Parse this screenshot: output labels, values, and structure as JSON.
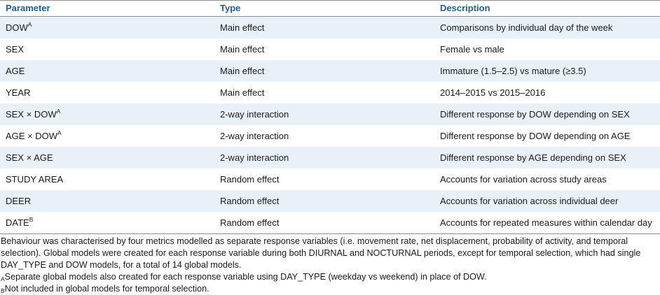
{
  "table": {
    "headers": [
      "Parameter",
      "Type",
      "Description"
    ],
    "rows": [
      {
        "parameter": "DOW",
        "sup": "A",
        "type": "Main effect",
        "description": "Comparisons by individual day of the week"
      },
      {
        "parameter": "SEX",
        "sup": "",
        "type": "Main effect",
        "description": "Female vs male"
      },
      {
        "parameter": "AGE",
        "sup": "",
        "type": "Main effect",
        "description": "Immature (1.5–2.5) vs mature (≥3.5)"
      },
      {
        "parameter": "YEAR",
        "sup": "",
        "type": "Main effect",
        "description": "2014–2015 vs 2015–2016"
      },
      {
        "parameter": "SEX × DOW",
        "sup": "A",
        "type": "2-way interaction",
        "description": "Different response by DOW depending on SEX"
      },
      {
        "parameter": "AGE × DOW",
        "sup": "A",
        "type": "2-way interaction",
        "description": "Different response by DOW depending on AGE"
      },
      {
        "parameter": "SEX × AGE",
        "sup": "",
        "type": "2-way interaction",
        "description": "Different response by AGE depending on SEX"
      },
      {
        "parameter": "STUDY AREA",
        "sup": "",
        "type": "Random effect",
        "description": "Accounts for variation across study areas"
      },
      {
        "parameter": "DEER",
        "sup": "",
        "type": "Random effect",
        "description": "Accounts for variation across individual deer"
      },
      {
        "parameter": "DATE",
        "sup": "B",
        "type": "Random effect",
        "description": "Accounts for repeated measures within calendar day"
      }
    ]
  },
  "notes": {
    "main": "Behaviour was characterised by four metrics modelled as separate response variables (i.e. movement rate, net displacement, probability of activity, and temporal selection). Global models were created for each response variable during both DIURNAL and NOCTURNAL periods, except for temporal selection, which had single DAY_TYPE and DOW models, for a total of 14 global models.",
    "a_mark": "A",
    "a_text": "Separate global models also created for each response variable using DAY_TYPE (weekday vs weekend) in place of DOW.",
    "b_mark": "B",
    "b_text": "Not included in global models for temporal selection."
  }
}
